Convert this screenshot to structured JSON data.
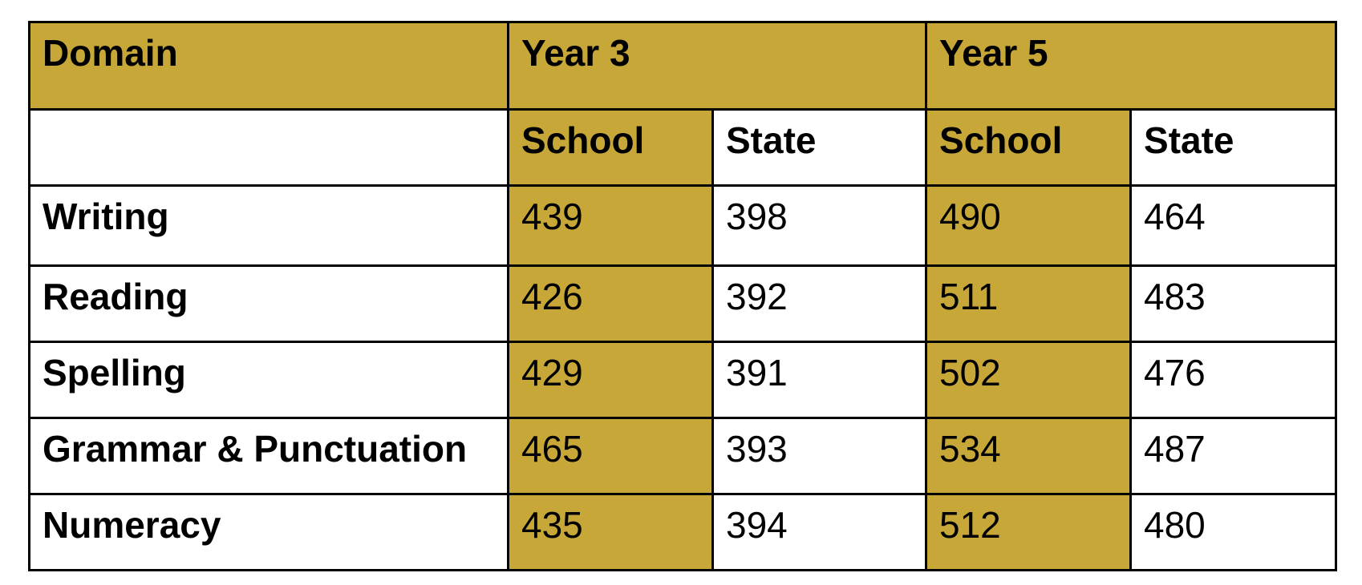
{
  "table": {
    "header": {
      "domain": "Domain",
      "year3": "Year 3",
      "year5": "Year 5",
      "school": "School",
      "state": "State"
    },
    "rows": [
      {
        "domain": "Writing",
        "y3_school": "439",
        "y3_state": "398",
        "y5_school": "490",
        "y5_state": "464"
      },
      {
        "domain": "Reading",
        "y3_school": "426",
        "y3_state": "392",
        "y5_school": "511",
        "y5_state": "483"
      },
      {
        "domain": "Spelling",
        "y3_school": "429",
        "y3_state": "391",
        "y5_school": "502",
        "y5_state": "476"
      },
      {
        "domain": "Grammar & Punctuation",
        "y3_school": "465",
        "y3_state": "393",
        "y5_school": "534",
        "y5_state": "487"
      },
      {
        "domain": "Numeracy",
        "y3_school": "435",
        "y3_state": "394",
        "y5_school": "512",
        "y5_state": "480"
      }
    ],
    "colors": {
      "highlight": "#c7a737",
      "border": "#000000",
      "background": "#ffffff"
    }
  }
}
